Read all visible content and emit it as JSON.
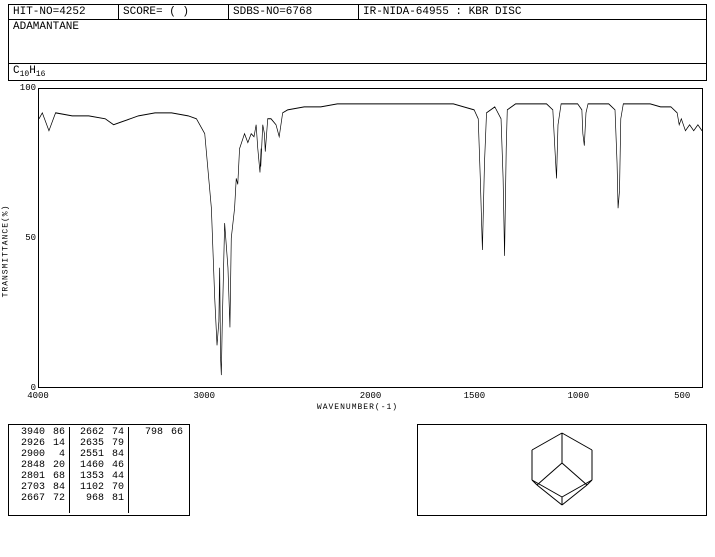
{
  "header": {
    "hit_no": "HIT-NO=4252",
    "score": "SCORE=   (  )",
    "sdbs_no": "SDBS-NO=6768",
    "method": "IR-NIDA-64955 : KBR DISC"
  },
  "compound_name": "ADAMANTANE",
  "formula_html": "C<sub>10</sub>H<sub>16</sub>",
  "chart": {
    "type": "line",
    "y_label": "TRANSMITTANCE(%)",
    "x_label": "WAVENUMBER(-1)",
    "xlim": [
      4000,
      400
    ],
    "ylim": [
      0,
      100
    ],
    "x_ticks": [
      4000,
      3000,
      2000,
      1500,
      1000,
      500
    ],
    "y_ticks": [
      0,
      50,
      100
    ],
    "background_color": "#ffffff",
    "line_color": "#000000",
    "line_width": 1,
    "data": [
      [
        4000,
        90
      ],
      [
        3980,
        92
      ],
      [
        3940,
        86
      ],
      [
        3900,
        92
      ],
      [
        3800,
        91
      ],
      [
        3700,
        91
      ],
      [
        3600,
        90
      ],
      [
        3550,
        88
      ],
      [
        3500,
        89
      ],
      [
        3450,
        90
      ],
      [
        3400,
        91
      ],
      [
        3300,
        92
      ],
      [
        3200,
        92
      ],
      [
        3100,
        91
      ],
      [
        3050,
        90
      ],
      [
        3000,
        85
      ],
      [
        2960,
        60
      ],
      [
        2940,
        30
      ],
      [
        2926,
        14
      ],
      [
        2915,
        22
      ],
      [
        2910,
        40
      ],
      [
        2905,
        10
      ],
      [
        2900,
        4
      ],
      [
        2895,
        20
      ],
      [
        2880,
        55
      ],
      [
        2860,
        40
      ],
      [
        2848,
        20
      ],
      [
        2840,
        50
      ],
      [
        2820,
        60
      ],
      [
        2810,
        70
      ],
      [
        2801,
        68
      ],
      [
        2790,
        80
      ],
      [
        2760,
        85
      ],
      [
        2740,
        82
      ],
      [
        2720,
        85
      ],
      [
        2703,
        84
      ],
      [
        2690,
        88
      ],
      [
        2680,
        80
      ],
      [
        2667,
        72
      ],
      [
        2660,
        80
      ],
      [
        2662,
        74
      ],
      [
        2650,
        88
      ],
      [
        2640,
        85
      ],
      [
        2635,
        79
      ],
      [
        2620,
        90
      ],
      [
        2600,
        90
      ],
      [
        2570,
        88
      ],
      [
        2551,
        84
      ],
      [
        2530,
        92
      ],
      [
        2500,
        93
      ],
      [
        2400,
        94
      ],
      [
        2300,
        94
      ],
      [
        2200,
        95
      ],
      [
        2100,
        95
      ],
      [
        2000,
        95
      ],
      [
        1900,
        95
      ],
      [
        1800,
        95
      ],
      [
        1700,
        95
      ],
      [
        1600,
        95
      ],
      [
        1550,
        94
      ],
      [
        1500,
        93
      ],
      [
        1480,
        90
      ],
      [
        1470,
        70
      ],
      [
        1460,
        46
      ],
      [
        1450,
        75
      ],
      [
        1440,
        92
      ],
      [
        1400,
        94
      ],
      [
        1370,
        90
      ],
      [
        1360,
        70
      ],
      [
        1353,
        44
      ],
      [
        1345,
        80
      ],
      [
        1340,
        93
      ],
      [
        1300,
        95
      ],
      [
        1250,
        95
      ],
      [
        1200,
        95
      ],
      [
        1150,
        95
      ],
      [
        1120,
        93
      ],
      [
        1110,
        80
      ],
      [
        1102,
        70
      ],
      [
        1095,
        88
      ],
      [
        1080,
        95
      ],
      [
        1050,
        95
      ],
      [
        1000,
        95
      ],
      [
        980,
        93
      ],
      [
        975,
        85
      ],
      [
        968,
        81
      ],
      [
        960,
        92
      ],
      [
        950,
        95
      ],
      [
        900,
        95
      ],
      [
        850,
        95
      ],
      [
        820,
        93
      ],
      [
        810,
        75
      ],
      [
        805,
        60
      ],
      [
        798,
        66
      ],
      [
        792,
        90
      ],
      [
        780,
        95
      ],
      [
        750,
        95
      ],
      [
        700,
        95
      ],
      [
        650,
        95
      ],
      [
        600,
        94
      ],
      [
        550,
        94
      ],
      [
        520,
        92
      ],
      [
        510,
        88
      ],
      [
        500,
        90
      ],
      [
        480,
        86
      ],
      [
        460,
        88
      ],
      [
        440,
        86
      ],
      [
        420,
        88
      ],
      [
        400,
        86
      ]
    ]
  },
  "peaks": {
    "columns": [
      [
        [
          3940,
          86
        ],
        [
          2926,
          14
        ],
        [
          2900,
          4
        ],
        [
          2848,
          20
        ],
        [
          2801,
          68
        ],
        [
          2703,
          84
        ],
        [
          2667,
          72
        ]
      ],
      [
        [
          2662,
          74
        ],
        [
          2635,
          79
        ],
        [
          2551,
          84
        ],
        [
          1460,
          46
        ],
        [
          1353,
          44
        ],
        [
          1102,
          70
        ],
        [
          968,
          81
        ]
      ],
      [
        [
          798,
          66
        ]
      ]
    ]
  },
  "structure": {
    "name": "adamantane",
    "stroke": "#000000"
  }
}
